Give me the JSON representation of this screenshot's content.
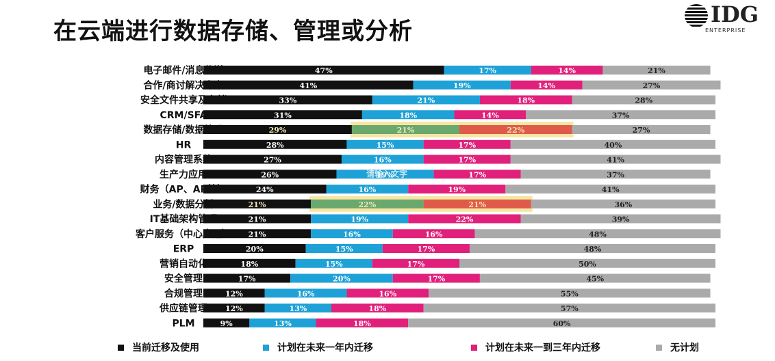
{
  "title": "在云端进行数据存储、管理或分析",
  "logo": {
    "text": "IDG",
    "sub": "ENTERPRISE"
  },
  "watermark": "请输入文字",
  "chart_data": {
    "type": "bar",
    "orientation": "horizontal",
    "stacked": true,
    "categories": [
      "电子邮件/消息传送",
      "合作/商讨解决方案",
      "安全文件共享及存储",
      "CRM/SFA",
      "数据存储/数据管理",
      "HR",
      "内容管理系统",
      "生产力应用",
      "财务（AP、AR等）",
      "业务/数据分析",
      "IT基础架构管理",
      "客户服务（中心应用）",
      "ERP",
      "营销自动化",
      "安全管理",
      "合规管理",
      "供应链管理",
      "PLM"
    ],
    "series": [
      {
        "name": "当前迁移及使用",
        "color": "#111111",
        "values": [
          47,
          41,
          33,
          31,
          29,
          28,
          27,
          26,
          24,
          21,
          21,
          21,
          20,
          18,
          17,
          12,
          12,
          9
        ]
      },
      {
        "name": "计划在未来一年内迁移",
        "color": "#1da1d6",
        "values": [
          17,
          19,
          21,
          18,
          21,
          15,
          16,
          19,
          16,
          22,
          19,
          16,
          15,
          15,
          20,
          16,
          13,
          13
        ]
      },
      {
        "name": "计划在未来一到三年内迁移",
        "color": "#e0207a",
        "values": [
          14,
          14,
          18,
          14,
          22,
          17,
          17,
          17,
          19,
          21,
          22,
          16,
          17,
          17,
          17,
          16,
          18,
          18
        ]
      },
      {
        "name": "无计划",
        "color": "#aaaaaa",
        "values": [
          21,
          27,
          28,
          37,
          27,
          40,
          41,
          37,
          41,
          36,
          39,
          48,
          48,
          50,
          45,
          55,
          57,
          60
        ]
      }
    ],
    "highlighted_categories": [
      "数据存储/数据管理",
      "业务/数据分析"
    ],
    "highlight_colors": {
      "series2": "#6aa86e",
      "series3": "#e05a4a",
      "outline": "#f5e6a3"
    },
    "value_suffix": "%",
    "xlim": [
      0,
      100
    ],
    "legend_position": "bottom",
    "grid": false
  }
}
